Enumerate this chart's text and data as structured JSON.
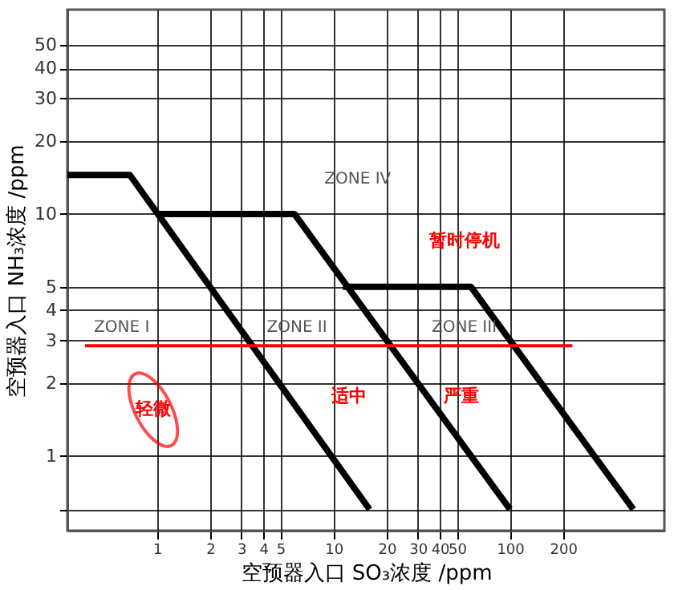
{
  "chart_data": {
    "type": "line",
    "xlabel": "空预器入口 SO₃浓度 /ppm",
    "ylabel": "空预器入口 NH₃浓度 /ppm",
    "series": [
      {
        "color": "#000000",
        "x": [
          0.31,
          0.7,
          16
        ],
        "values": [
          14.5,
          14.5,
          0.6
        ]
      },
      {
        "color": "#000000",
        "x": [
          1,
          6,
          100
        ],
        "values": [
          10,
          10,
          0.6
        ]
      },
      {
        "color": "#000000",
        "x": [
          11.3,
          60,
          500
        ],
        "values": [
          5,
          5,
          0.6
        ]
      },
      {
        "color": "#ff0000",
        "x": [
          0.39,
          226
        ],
        "values": [
          2.85,
          2.85
        ]
      }
    ],
    "log": "xy",
    "xlim": [
      0.31,
      750
    ],
    "ylim": [
      0.49,
      70
    ],
    "xticks": [
      1,
      2,
      3,
      4,
      5,
      10,
      20,
      30,
      40,
      50,
      100,
      200
    ],
    "yticks": [
      {
        "value": 0.6,
        "label": null
      },
      1,
      2,
      3,
      4,
      5,
      10,
      20,
      30,
      40,
      50
    ],
    "grid": true,
    "legend": false,
    "marker": "none",
    "line_style": "solid",
    "annotations": [
      "ZONE I",
      "ZONE II",
      "ZONE III",
      "ZONE IV",
      "暂时停机",
      "适中",
      "严重",
      "轻微"
    ]
  }
}
